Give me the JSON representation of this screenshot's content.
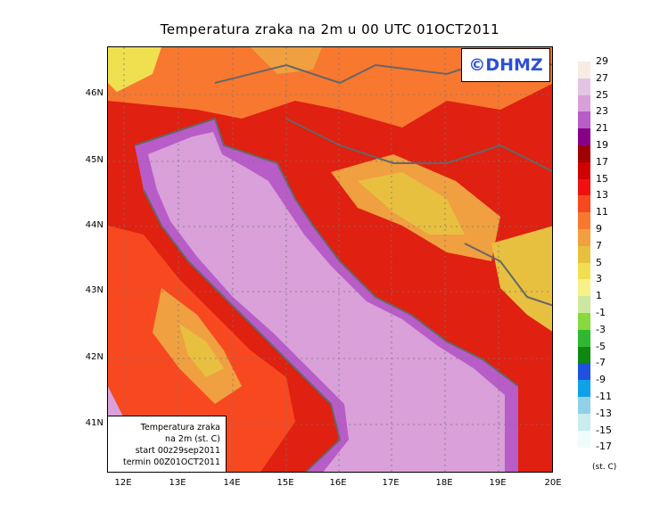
{
  "title": "Temperatura zraka na 2m u 00 UTC 01OCT2011",
  "logo": "©DHMZ",
  "info_box": {
    "line1": "Temperatura zraka",
    "line2": "na 2m (st. C)",
    "line3": "start 00z29sep2011",
    "line4": "termin 00Z01OCT2011"
  },
  "axes": {
    "lat_labels": [
      "46N",
      "45N",
      "44N",
      "43N",
      "42N",
      "41N"
    ],
    "lon_labels": [
      "12E",
      "13E",
      "14E",
      "15E",
      "16E",
      "17E",
      "18E",
      "19E",
      "20E"
    ]
  },
  "legend": {
    "units": "(st. C)",
    "labels": [
      "29",
      "27",
      "25",
      "23",
      "21",
      "19",
      "17",
      "15",
      "13",
      "11",
      "9",
      "7",
      "5",
      "3",
      "1",
      "-1",
      "-3",
      "-5",
      "-7",
      "-9",
      "-11",
      "-13",
      "-15",
      "-17"
    ],
    "colors": [
      "#f8ece2",
      "#e4c4e4",
      "#d9a0d9",
      "#b85cc8",
      "#880088",
      "#a00000",
      "#d00000",
      "#f01010",
      "#f84820",
      "#f87830",
      "#f0a040",
      "#e8c040",
      "#f0e050",
      "#f8f088",
      "#cce8a0",
      "#88d840",
      "#30b830",
      "#108810",
      "#2050e0",
      "#10a0e8",
      "#90d0e8",
      "#c8ecf0",
      "#f0fcfc"
    ]
  }
}
